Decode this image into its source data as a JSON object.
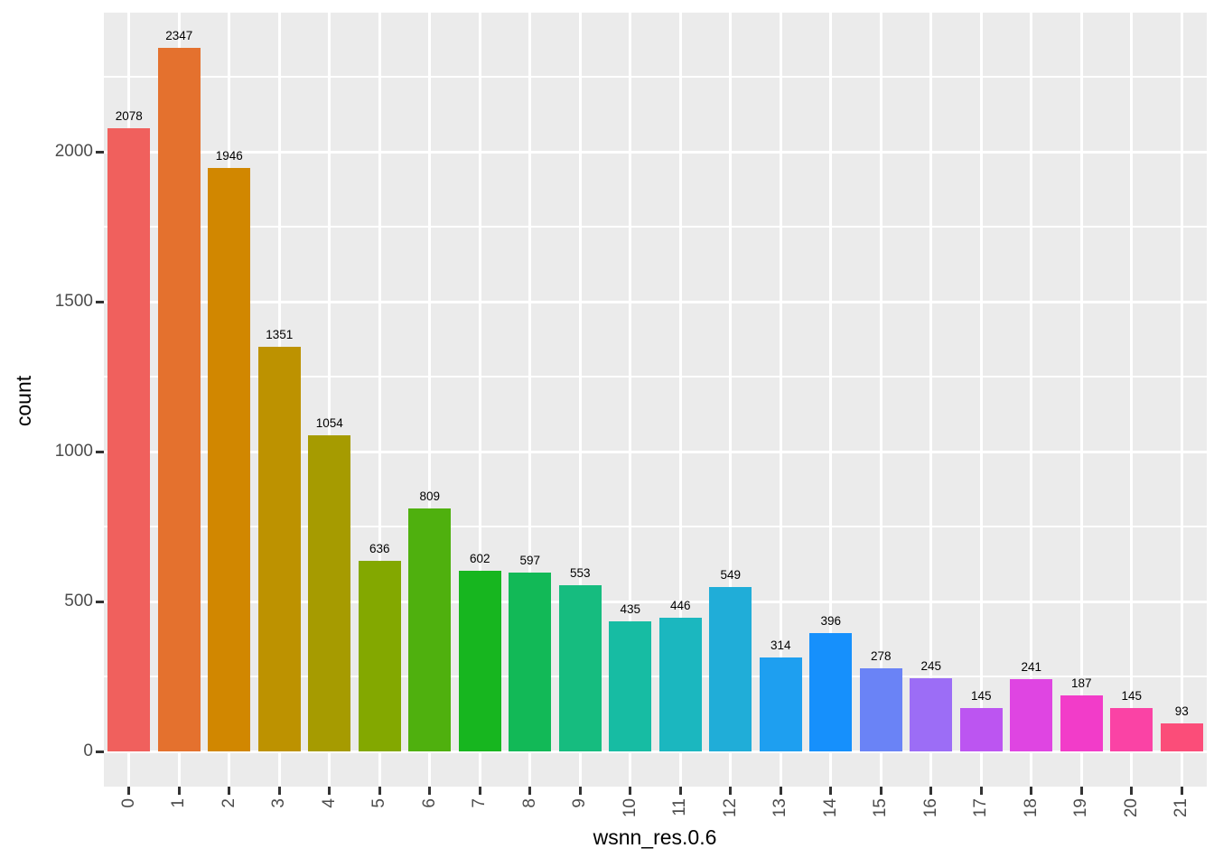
{
  "chart_data": {
    "type": "bar",
    "title": "",
    "xlabel": "wsnn_res.0.6",
    "ylabel": "count",
    "categories": [
      "0",
      "1",
      "2",
      "3",
      "4",
      "5",
      "6",
      "7",
      "8",
      "9",
      "10",
      "11",
      "12",
      "13",
      "14",
      "15",
      "16",
      "17",
      "18",
      "19",
      "20",
      "21"
    ],
    "values": [
      2078,
      2347,
      1946,
      1351,
      1054,
      636,
      809,
      602,
      597,
      553,
      435,
      446,
      549,
      314,
      396,
      278,
      245,
      145,
      241,
      187,
      145,
      93
    ],
    "bar_value_labels": [
      "2078",
      "2347",
      "1946",
      "1351",
      "1054",
      "636",
      "809",
      "602",
      "597",
      "553",
      "435",
      "446",
      "549",
      "314",
      "396",
      "278",
      "245",
      "145",
      "241",
      "187",
      "145",
      "93"
    ],
    "bar_colors": [
      "#F0605D",
      "#E4712E",
      "#D18700",
      "#BD9200",
      "#A69B00",
      "#83A800",
      "#4FB00E",
      "#17B61F",
      "#12B957",
      "#16BC7F",
      "#17BCA3",
      "#1BB7BF",
      "#20ADD8",
      "#1E9FF0",
      "#1690FC",
      "#6A83F6",
      "#9C6DF6",
      "#BC55F1",
      "#DF45E2",
      "#F23CC9",
      "#FA43A5",
      "#FB4D79"
    ],
    "y_major_ticks": [
      0,
      500,
      1000,
      1500,
      2000
    ],
    "y_major_tick_labels": [
      "0",
      "500",
      "1000",
      "1500",
      "2000"
    ],
    "y_minor_ticks": [
      250,
      750,
      1250,
      1750,
      2250
    ],
    "ylim": [
      -117.35,
      2464.35
    ],
    "grid": "on",
    "legend_position": "none",
    "colors": {
      "panel_background": "#EBEBEB",
      "gridline": "#FFFFFF",
      "tick_mark": "#333333",
      "tick_label": "#4D4D4D",
      "axis_title": "#000000",
      "bar_value_label": "#000000",
      "figure_background": "#FFFFFF"
    }
  }
}
